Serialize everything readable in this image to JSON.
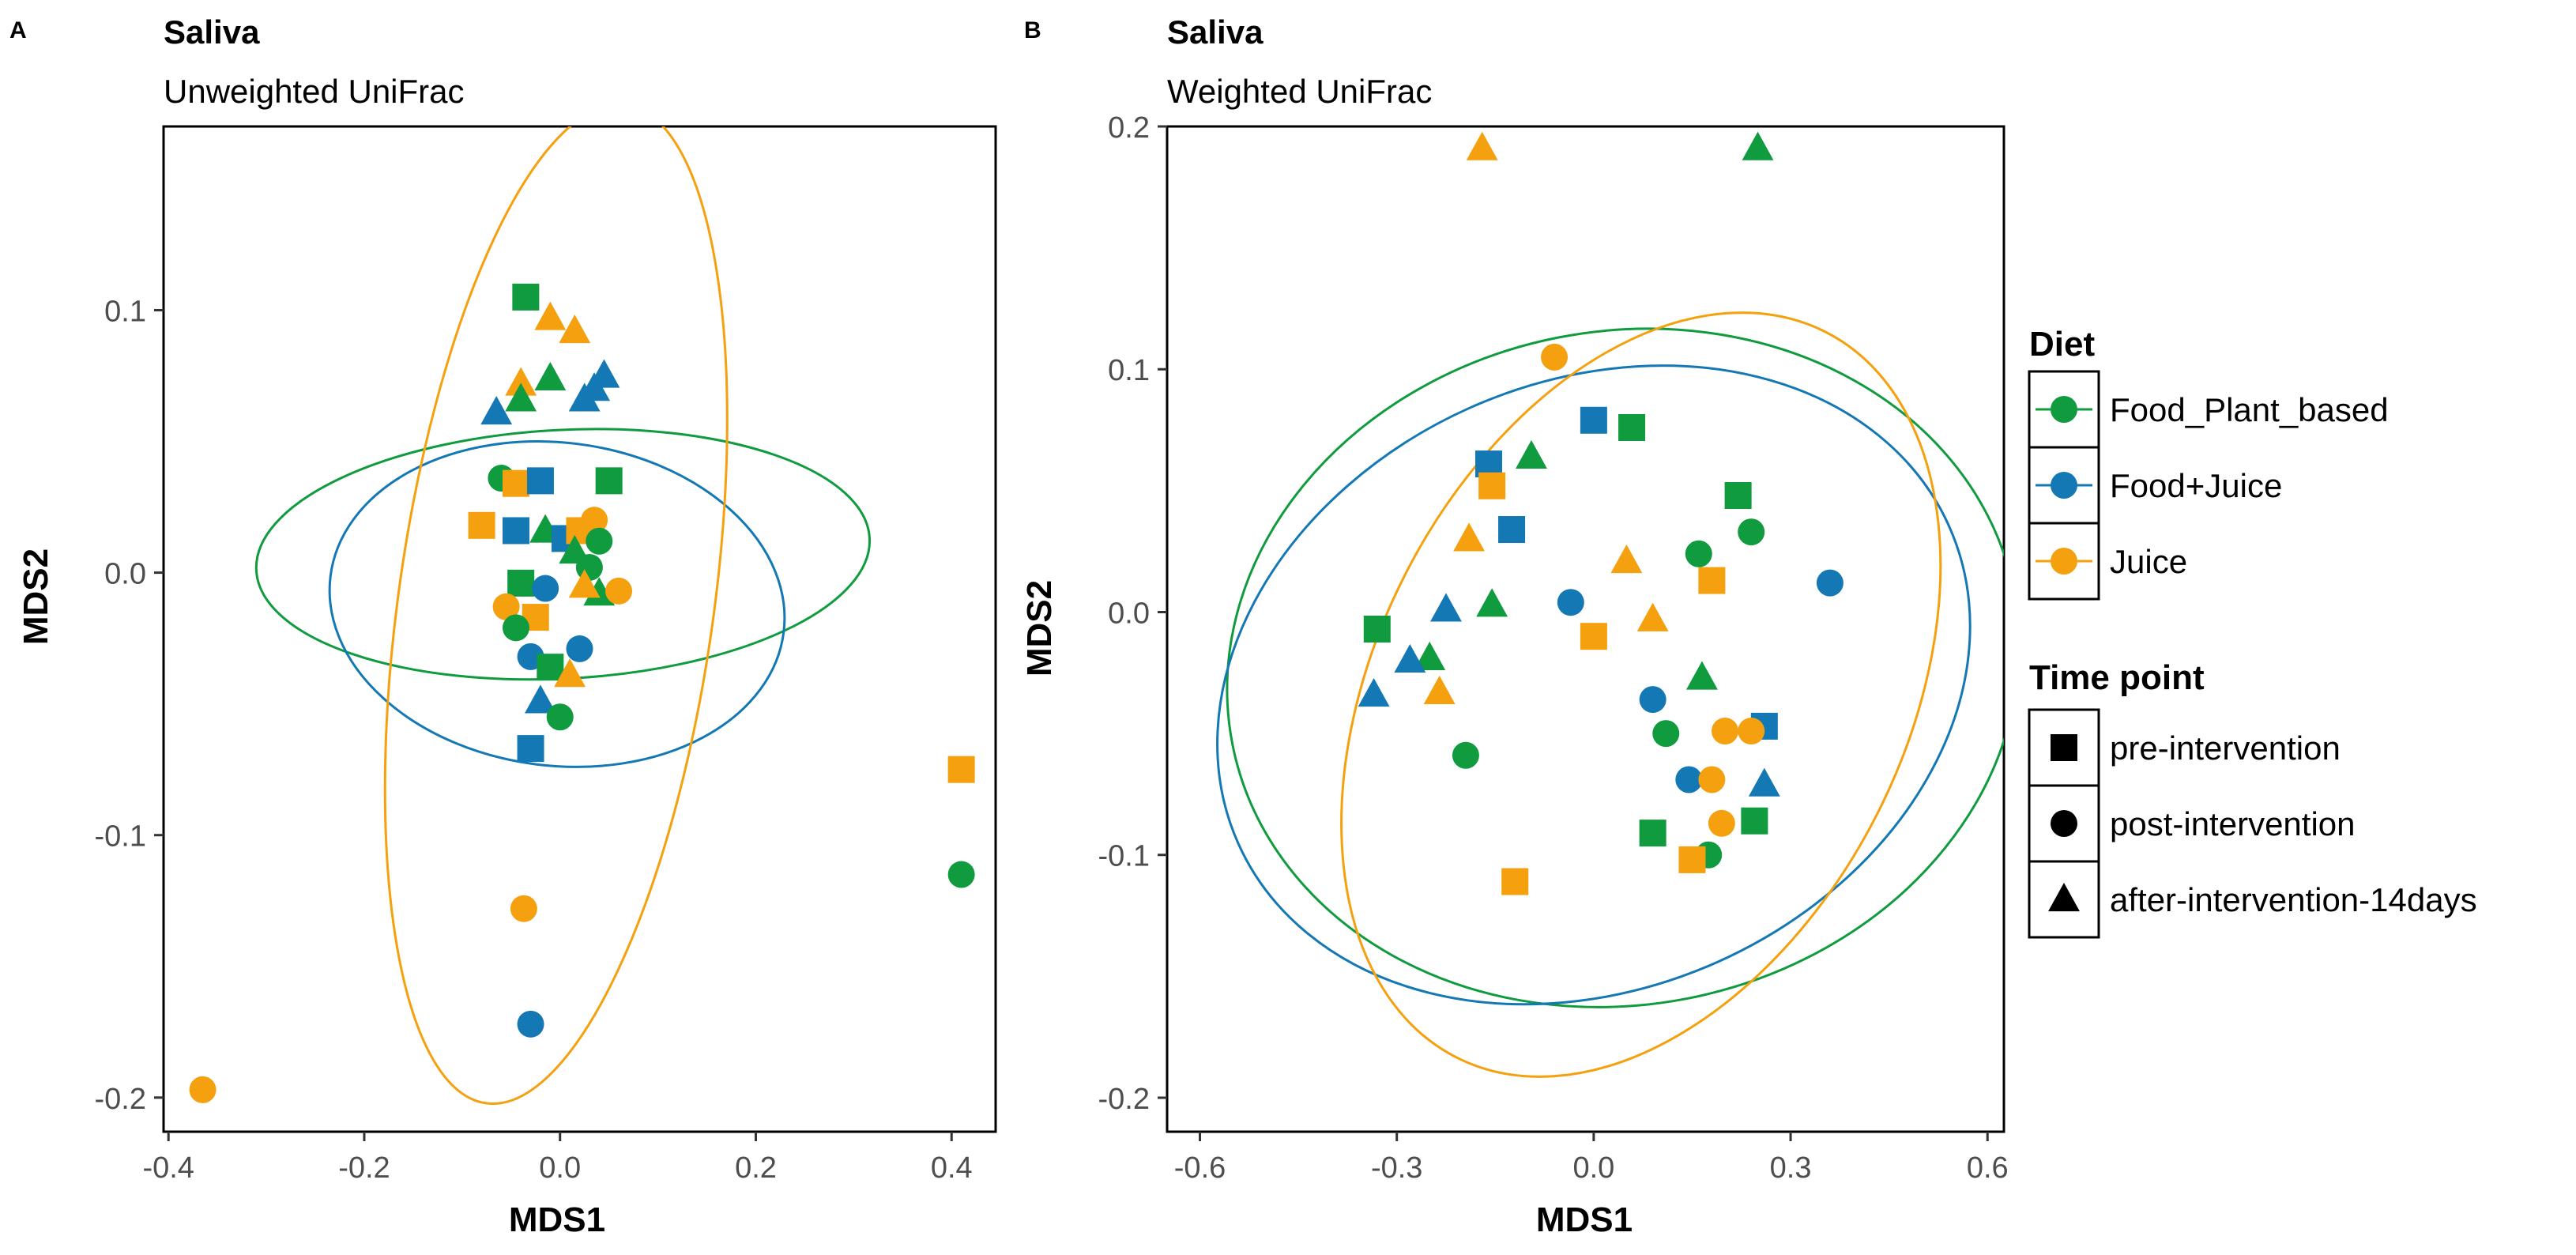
{
  "colors": {
    "Food_Plant_based": "#0f9b3e",
    "Food+Juice": "#1478b4",
    "Juice": "#f5a00f"
  },
  "legend": {
    "diet_title": "Diet",
    "diet_items": [
      "Food_Plant_based",
      "Food+Juice",
      "Juice"
    ],
    "time_title": "Time point",
    "time_items": [
      {
        "label": "pre-intervention",
        "shape": "square"
      },
      {
        "label": "post-intervention",
        "shape": "circle"
      },
      {
        "label": "after-intervention-14days",
        "shape": "triangle"
      }
    ]
  },
  "chart_data": [
    {
      "type": "scatter",
      "panel_label": "A",
      "title": "Saliva",
      "subtitle": "Unweighted UniFrac",
      "xlabel": "MDS1",
      "ylabel": "MDS2",
      "xlim": [
        -0.405,
        0.445
      ],
      "ylim": [
        -0.213,
        0.17
      ],
      "xticks": [
        -0.4,
        -0.2,
        0.0,
        0.2,
        0.4
      ],
      "xtick_labels": [
        "-0.4",
        "-0.2",
        "0.0",
        "0.2",
        "0.4"
      ],
      "yticks": [
        -0.2,
        -0.1,
        0.0,
        0.1
      ],
      "ytick_labels": [
        "-0.2",
        "-0.1",
        "0.0",
        "0.1"
      ],
      "ellipses": [
        {
          "group": "Food_Plant_based",
          "cx": 0.003,
          "cy": 0.007,
          "rx": 0.127,
          "ry": 0.117,
          "angle_deg": -87
        },
        {
          "group": "Food+Juice",
          "cx": -0.003,
          "cy": -0.012,
          "rx": 0.165,
          "ry": 0.087,
          "angle_deg": -97
        },
        {
          "group": "Juice",
          "cx": -0.004,
          "cy": -0.012,
          "rx": 0.161,
          "ry": 0.192,
          "angle_deg": -8
        }
      ],
      "points": [
        {
          "group": "Food_Plant_based",
          "shape": "square",
          "x": -0.035,
          "y": 0.105
        },
        {
          "group": "Juice",
          "shape": "triangle",
          "x": -0.01,
          "y": 0.097
        },
        {
          "group": "Juice",
          "shape": "triangle",
          "x": 0.015,
          "y": 0.092
        },
        {
          "group": "Food+Juice",
          "shape": "triangle",
          "x": 0.045,
          "y": 0.075
        },
        {
          "group": "Food+Juice",
          "shape": "triangle",
          "x": 0.035,
          "y": 0.07
        },
        {
          "group": "Juice",
          "shape": "triangle",
          "x": -0.04,
          "y": 0.072
        },
        {
          "group": "Food_Plant_based",
          "shape": "triangle",
          "x": -0.01,
          "y": 0.074
        },
        {
          "group": "Food+Juice",
          "shape": "triangle",
          "x": 0.025,
          "y": 0.066
        },
        {
          "group": "Food_Plant_based",
          "shape": "triangle",
          "x": -0.04,
          "y": 0.066
        },
        {
          "group": "Food+Juice",
          "shape": "triangle",
          "x": -0.065,
          "y": 0.061
        },
        {
          "group": "Food_Plant_based",
          "shape": "circle",
          "x": -0.06,
          "y": 0.036
        },
        {
          "group": "Juice",
          "shape": "square",
          "x": -0.045,
          "y": 0.034
        },
        {
          "group": "Food+Juice",
          "shape": "square",
          "x": -0.02,
          "y": 0.035
        },
        {
          "group": "Food_Plant_based",
          "shape": "square",
          "x": 0.05,
          "y": 0.035
        },
        {
          "group": "Juice",
          "shape": "square",
          "x": -0.08,
          "y": 0.018
        },
        {
          "group": "Food+Juice",
          "shape": "square",
          "x": -0.045,
          "y": 0.016
        },
        {
          "group": "Food_Plant_based",
          "shape": "triangle",
          "x": -0.015,
          "y": 0.016
        },
        {
          "group": "Food+Juice",
          "shape": "square",
          "x": 0.005,
          "y": 0.013
        },
        {
          "group": "Juice",
          "shape": "circle",
          "x": 0.035,
          "y": 0.02
        },
        {
          "group": "Juice",
          "shape": "square",
          "x": 0.02,
          "y": 0.016
        },
        {
          "group": "Food_Plant_based",
          "shape": "circle",
          "x": 0.04,
          "y": 0.012
        },
        {
          "group": "Food_Plant_based",
          "shape": "triangle",
          "x": 0.015,
          "y": 0.008
        },
        {
          "group": "Food_Plant_based",
          "shape": "circle",
          "x": 0.03,
          "y": 0.002
        },
        {
          "group": "Food_Plant_based",
          "shape": "triangle",
          "x": 0.04,
          "y": -0.008
        },
        {
          "group": "Juice",
          "shape": "triangle",
          "x": 0.025,
          "y": -0.005
        },
        {
          "group": "Juice",
          "shape": "circle",
          "x": 0.06,
          "y": -0.007
        },
        {
          "group": "Food_Plant_based",
          "shape": "square",
          "x": -0.04,
          "y": -0.004
        },
        {
          "group": "Food+Juice",
          "shape": "circle",
          "x": -0.015,
          "y": -0.006
        },
        {
          "group": "Juice",
          "shape": "circle",
          "x": -0.055,
          "y": -0.013
        },
        {
          "group": "Juice",
          "shape": "square",
          "x": -0.025,
          "y": -0.017
        },
        {
          "group": "Food_Plant_based",
          "shape": "circle",
          "x": -0.045,
          "y": -0.021
        },
        {
          "group": "Food+Juice",
          "shape": "circle",
          "x": -0.03,
          "y": -0.032
        },
        {
          "group": "Food+Juice",
          "shape": "circle",
          "x": 0.02,
          "y": -0.029
        },
        {
          "group": "Food_Plant_based",
          "shape": "square",
          "x": -0.01,
          "y": -0.036
        },
        {
          "group": "Juice",
          "shape": "triangle",
          "x": 0.01,
          "y": -0.039
        },
        {
          "group": "Food+Juice",
          "shape": "triangle",
          "x": -0.02,
          "y": -0.049
        },
        {
          "group": "Food_Plant_based",
          "shape": "circle",
          "x": 0.0,
          "y": -0.055
        },
        {
          "group": "Food+Juice",
          "shape": "square",
          "x": -0.03,
          "y": -0.067
        },
        {
          "group": "Juice",
          "shape": "square",
          "x": 0.41,
          "y": -0.075
        },
        {
          "group": "Food_Plant_based",
          "shape": "circle",
          "x": 0.41,
          "y": -0.115
        },
        {
          "group": "Juice",
          "shape": "circle",
          "x": -0.037,
          "y": -0.128
        },
        {
          "group": "Food+Juice",
          "shape": "circle",
          "x": -0.03,
          "y": -0.172
        },
        {
          "group": "Juice",
          "shape": "circle",
          "x": -0.365,
          "y": -0.197
        }
      ]
    },
    {
      "type": "scatter",
      "panel_label": "B",
      "title": "Saliva",
      "subtitle": "Weighted UniFrac",
      "xlabel": "MDS1",
      "ylabel": "MDS2",
      "xlim": [
        -0.65,
        0.625
      ],
      "ylim": [
        -0.214,
        0.2
      ],
      "xticks": [
        -0.6,
        -0.3,
        0.0,
        0.3,
        0.6
      ],
      "xtick_labels": [
        "-0.6",
        "-0.3",
        "0.0",
        "0.3",
        "0.6"
      ],
      "yticks": [
        -0.2,
        -0.1,
        0.0,
        0.1,
        0.2
      ],
      "ytick_labels": [
        "-0.2",
        "-0.1",
        "0.0",
        "0.1",
        "0.2"
      ],
      "ellipses": [
        {
          "group": "Food_Plant_based",
          "cx": 0.045,
          "cy": -0.023,
          "rx": 0.513,
          "ry": 0.164,
          "angle_deg": -79
        },
        {
          "group": "Food+Juice",
          "cx": 0.0,
          "cy": -0.03,
          "rx": 0.593,
          "ry": 0.125,
          "angle_deg": 24
        },
        {
          "group": "Juice",
          "cx": 0.072,
          "cy": -0.034,
          "rx": 0.62,
          "ry": 0.109,
          "angle_deg": 63
        }
      ],
      "points": [
        {
          "group": "Juice",
          "shape": "triangle",
          "x": -0.17,
          "y": 0.191
        },
        {
          "group": "Food_Plant_based",
          "shape": "triangle",
          "x": 0.25,
          "y": 0.191
        },
        {
          "group": "Juice",
          "shape": "circle",
          "x": -0.06,
          "y": 0.105
        },
        {
          "group": "Food+Juice",
          "shape": "square",
          "x": 0.0,
          "y": 0.079
        },
        {
          "group": "Food_Plant_based",
          "shape": "square",
          "x": 0.058,
          "y": 0.076
        },
        {
          "group": "Food_Plant_based",
          "shape": "triangle",
          "x": -0.095,
          "y": 0.064
        },
        {
          "group": "Food+Juice",
          "shape": "square",
          "x": -0.16,
          "y": 0.061
        },
        {
          "group": "Juice",
          "shape": "square",
          "x": -0.155,
          "y": 0.052
        },
        {
          "group": "Food_Plant_based",
          "shape": "square",
          "x": 0.22,
          "y": 0.048
        },
        {
          "group": "Food+Juice",
          "shape": "square",
          "x": -0.125,
          "y": 0.034
        },
        {
          "group": "Food_Plant_based",
          "shape": "circle",
          "x": 0.24,
          "y": 0.033
        },
        {
          "group": "Juice",
          "shape": "triangle",
          "x": -0.19,
          "y": 0.03
        },
        {
          "group": "Food_Plant_based",
          "shape": "circle",
          "x": 0.16,
          "y": 0.024
        },
        {
          "group": "Juice",
          "shape": "triangle",
          "x": 0.05,
          "y": 0.021
        },
        {
          "group": "Juice",
          "shape": "square",
          "x": 0.18,
          "y": 0.013
        },
        {
          "group": "Food+Juice",
          "shape": "circle",
          "x": 0.36,
          "y": 0.012
        },
        {
          "group": "Food+Juice",
          "shape": "circle",
          "x": -0.035,
          "y": 0.004
        },
        {
          "group": "Food_Plant_based",
          "shape": "triangle",
          "x": -0.155,
          "y": 0.003
        },
        {
          "group": "Food+Juice",
          "shape": "triangle",
          "x": -0.225,
          "y": 0.001
        },
        {
          "group": "Juice",
          "shape": "triangle",
          "x": 0.09,
          "y": -0.003
        },
        {
          "group": "Food_Plant_based",
          "shape": "square",
          "x": -0.33,
          "y": -0.007
        },
        {
          "group": "Juice",
          "shape": "square",
          "x": 0.0,
          "y": -0.01
        },
        {
          "group": "Food_Plant_based",
          "shape": "triangle",
          "x": -0.25,
          "y": -0.019
        },
        {
          "group": "Food+Juice",
          "shape": "triangle",
          "x": -0.28,
          "y": -0.02
        },
        {
          "group": "Food_Plant_based",
          "shape": "triangle",
          "x": 0.165,
          "y": -0.027
        },
        {
          "group": "Juice",
          "shape": "triangle",
          "x": -0.235,
          "y": -0.033
        },
        {
          "group": "Food+Juice",
          "shape": "triangle",
          "x": -0.335,
          "y": -0.034
        },
        {
          "group": "Food+Juice",
          "shape": "circle",
          "x": 0.09,
          "y": -0.036
        },
        {
          "group": "Food+Juice",
          "shape": "square",
          "x": 0.26,
          "y": -0.047
        },
        {
          "group": "Food_Plant_based",
          "shape": "circle",
          "x": 0.11,
          "y": -0.05
        },
        {
          "group": "Juice",
          "shape": "circle",
          "x": 0.2,
          "y": -0.049
        },
        {
          "group": "Juice",
          "shape": "circle",
          "x": 0.24,
          "y": -0.049
        },
        {
          "group": "Food_Plant_based",
          "shape": "circle",
          "x": -0.195,
          "y": -0.059
        },
        {
          "group": "Food+Juice",
          "shape": "circle",
          "x": 0.145,
          "y": -0.069
        },
        {
          "group": "Juice",
          "shape": "circle",
          "x": 0.18,
          "y": -0.069
        },
        {
          "group": "Food+Juice",
          "shape": "triangle",
          "x": 0.26,
          "y": -0.071
        },
        {
          "group": "Food_Plant_based",
          "shape": "square",
          "x": 0.245,
          "y": -0.086
        },
        {
          "group": "Juice",
          "shape": "circle",
          "x": 0.195,
          "y": -0.087
        },
        {
          "group": "Food_Plant_based",
          "shape": "square",
          "x": 0.09,
          "y": -0.091
        },
        {
          "group": "Food_Plant_based",
          "shape": "circle",
          "x": 0.175,
          "y": -0.1
        },
        {
          "group": "Juice",
          "shape": "square",
          "x": 0.15,
          "y": -0.102
        },
        {
          "group": "Juice",
          "shape": "square",
          "x": -0.12,
          "y": -0.111
        }
      ]
    }
  ]
}
